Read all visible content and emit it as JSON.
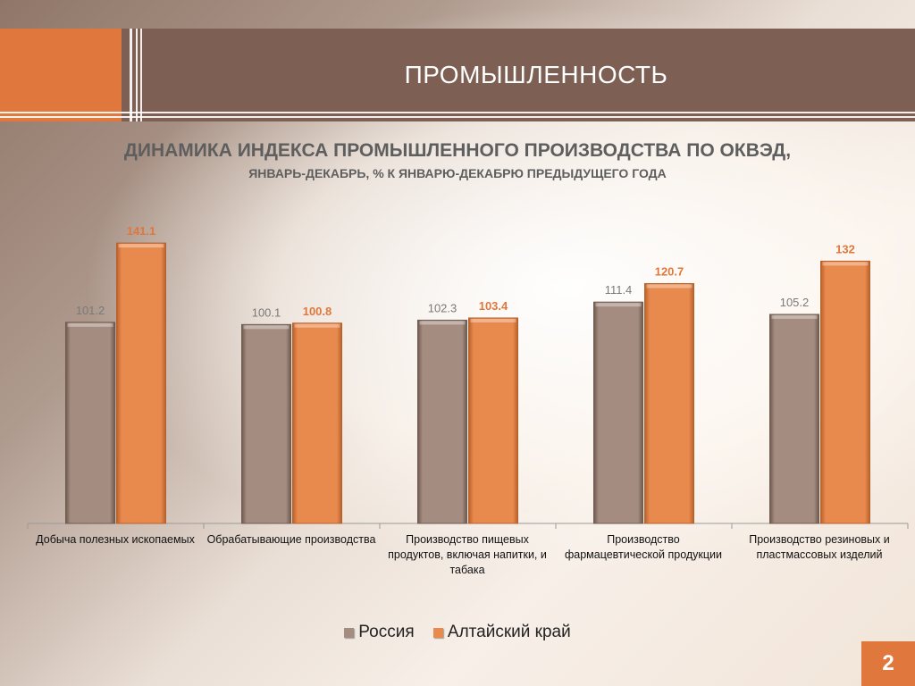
{
  "slide": {
    "header_title": "ПРОМЫШЛЕННОСТЬ",
    "page_number": "2"
  },
  "colors": {
    "header_band": "#7d5f53",
    "accent_orange": "#e0773c",
    "series_russia": "#a48c80",
    "series_altai": "#e88a4e",
    "label_russia": "#7a7a7a",
    "label_altai": "#e0773c"
  },
  "chart_data": {
    "type": "bar",
    "title": "ДИНАМИКА ИНДЕКСА ПРОМЫШЛЕННОГО ПРОИЗВОДСТВА ПО ОКВЭД,",
    "subtitle": "ЯНВАРЬ-ДЕКАБРЬ, % К ЯНВАРЮ-ДЕКАБРЮ ПРЕДЫДУЩЕГО ГОДА",
    "categories": [
      "Добыча полезных ископаемых",
      "Обрабатывающие производства",
      "Производство пищевых продуктов, включая напитки, и табака",
      "Производство фармацевтической продукции",
      "Производство резиновых и пластмассовых изделий"
    ],
    "series": [
      {
        "name": "Россия",
        "values": [
          101.2,
          100.1,
          102.3,
          111.4,
          105.2
        ],
        "labels": [
          "101.2",
          "100.1",
          "102.3",
          "111.4",
          "105.2"
        ]
      },
      {
        "name": "Алтайский край",
        "values": [
          141.1,
          100.8,
          103.4,
          120.7,
          132
        ],
        "labels": [
          "141.1",
          "100.8",
          "103.4",
          "120.7",
          "132"
        ]
      }
    ],
    "ylim": [
      0,
      150
    ],
    "xlabel": "",
    "ylabel": "",
    "grid": false,
    "legend_position": "bottom"
  }
}
